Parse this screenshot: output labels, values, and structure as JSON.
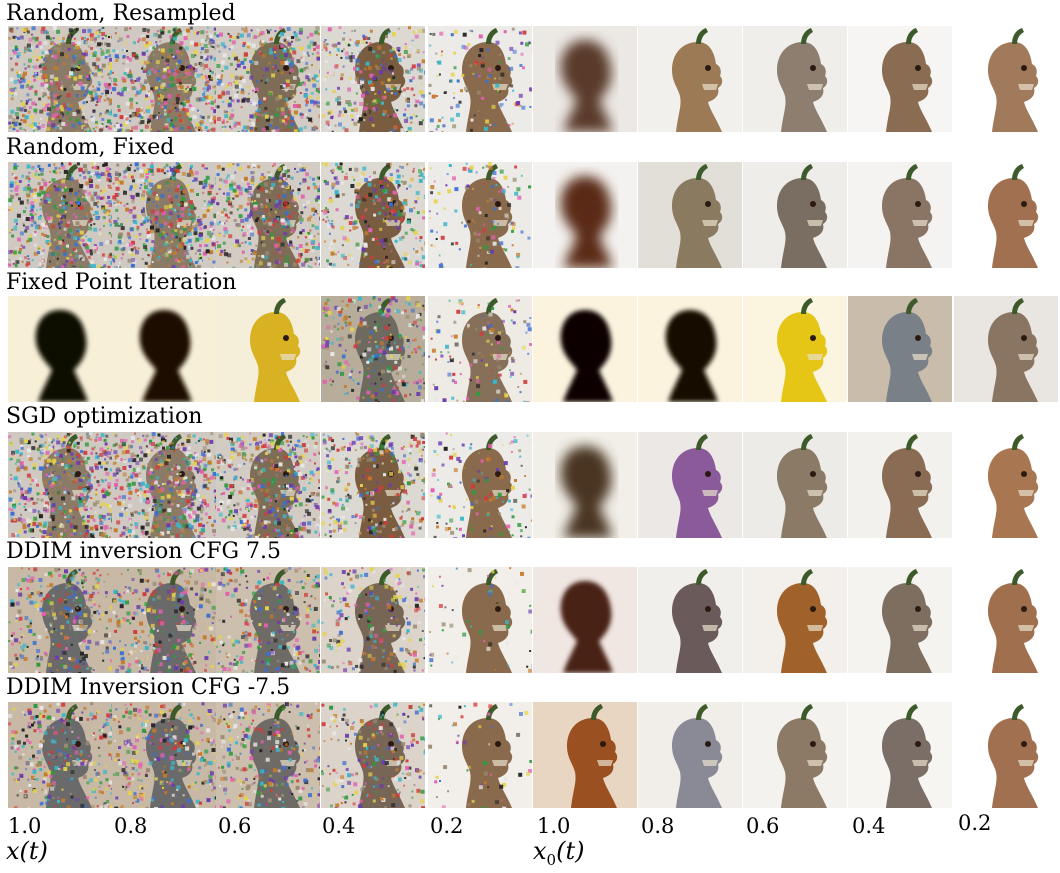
{
  "rows": [
    {
      "title": "Random, Resampled",
      "cells": [
        {
          "kind": "noise",
          "noise": 1.0,
          "bg": "#cfc9c2",
          "head": "#8a7a66"
        },
        {
          "kind": "noise",
          "noise": 0.95,
          "bg": "#cfc9c2",
          "head": "#8a7a66"
        },
        {
          "kind": "noise",
          "noise": 0.8,
          "bg": "#d2ccc4",
          "head": "#7d6c56"
        },
        {
          "kind": "noise",
          "noise": 0.55,
          "bg": "#dcd8d2",
          "head": "#7a5d40"
        },
        {
          "kind": "noise",
          "noise": 0.25,
          "bg": "#ecebe8",
          "head": "#8a6a4c"
        },
        {
          "kind": "blur",
          "noise": 0,
          "bg": "#ece8e4",
          "head": "#5a3a2a"
        },
        {
          "kind": "head",
          "noise": 0,
          "bg": "#f2f0ec",
          "head": "#9b7a55"
        },
        {
          "kind": "head",
          "noise": 0,
          "bg": "#efeeeb",
          "head": "#8d7e70"
        },
        {
          "kind": "head",
          "noise": 0,
          "bg": "#f6f5f3",
          "head": "#8a6c52"
        },
        {
          "kind": "head",
          "noise": 0,
          "bg": "#ffffff",
          "head": "#a07a5a"
        }
      ]
    },
    {
      "title": "Random, Fixed",
      "cells": [
        {
          "kind": "noise",
          "noise": 1.0,
          "bg": "#cfc9c2",
          "head": "#8a7a66"
        },
        {
          "kind": "noise",
          "noise": 0.95,
          "bg": "#cfc9c2",
          "head": "#8a7a66"
        },
        {
          "kind": "noise",
          "noise": 0.8,
          "bg": "#d2ccc4",
          "head": "#7d6c56"
        },
        {
          "kind": "noise",
          "noise": 0.55,
          "bg": "#dcd8d2",
          "head": "#7a5d40"
        },
        {
          "kind": "noise",
          "noise": 0.25,
          "bg": "#ecebe8",
          "head": "#8a6a4c"
        },
        {
          "kind": "blur",
          "noise": 0,
          "bg": "#f4f2f0",
          "head": "#5a2a14"
        },
        {
          "kind": "head",
          "noise": 0,
          "bg": "#e2ded8",
          "head": "#8a7a60"
        },
        {
          "kind": "head",
          "noise": 0,
          "bg": "#eeedea",
          "head": "#7a6e62"
        },
        {
          "kind": "head",
          "noise": 0,
          "bg": "#f4f3f1",
          "head": "#8a7464"
        },
        {
          "kind": "head",
          "noise": 0,
          "bg": "#ffffff",
          "head": "#a07050"
        }
      ]
    },
    {
      "title": "Fixed Point Iteration",
      "cells": [
        {
          "kind": "sil",
          "noise": 0,
          "bg": "#f7efd6",
          "head": "#0c0806"
        },
        {
          "kind": "sil",
          "noise": 0,
          "bg": "#f7efd6",
          "head": "#1a0d06"
        },
        {
          "kind": "head",
          "noise": 0,
          "bg": "#f5eed8",
          "head": "#d8b222"
        },
        {
          "kind": "noise",
          "noise": 0.5,
          "bg": "#b8ad9a",
          "head": "#6d6a60"
        },
        {
          "kind": "noise",
          "noise": 0.25,
          "bg": "#eeeae4",
          "head": "#86705a"
        },
        {
          "kind": "sil",
          "noise": 0,
          "bg": "#fbf3dd",
          "head": "#0a0604"
        },
        {
          "kind": "sil",
          "noise": 0,
          "bg": "#fbf3dd",
          "head": "#120804"
        },
        {
          "kind": "head",
          "noise": 0,
          "bg": "#fbf4df",
          "head": "#e5c515"
        },
        {
          "kind": "head",
          "noise": 0,
          "bg": "#c9bcaa",
          "head": "#7a8088"
        },
        {
          "kind": "head",
          "noise": 0,
          "bg": "#e9e5e0",
          "head": "#8a7462"
        }
      ]
    },
    {
      "title": "SGD optimization",
      "cells": [
        {
          "kind": "noise",
          "noise": 1.0,
          "bg": "#cfc9c2",
          "head": "#8a7a66"
        },
        {
          "kind": "noise",
          "noise": 0.95,
          "bg": "#cfc9c2",
          "head": "#8a7a66"
        },
        {
          "kind": "noise",
          "noise": 0.8,
          "bg": "#d2ccc4",
          "head": "#7d6c56"
        },
        {
          "kind": "noise",
          "noise": 0.55,
          "bg": "#dcd8d2",
          "head": "#7a5d40"
        },
        {
          "kind": "noise",
          "noise": 0.25,
          "bg": "#ecebe8",
          "head": "#8a6a4c"
        },
        {
          "kind": "blur",
          "noise": 0,
          "bg": "#f2efe8",
          "head": "#4a3622"
        },
        {
          "kind": "head",
          "noise": 0,
          "bg": "#ece8e6",
          "head": "#8a5a9a"
        },
        {
          "kind": "head",
          "noise": 0,
          "bg": "#ecebe8",
          "head": "#8a7a66"
        },
        {
          "kind": "head",
          "noise": 0,
          "bg": "#f2f1ee",
          "head": "#8a6c54"
        },
        {
          "kind": "head",
          "noise": 0,
          "bg": "#ffffff",
          "head": "#a87650"
        }
      ]
    },
    {
      "title": "DDIM inversion CFG 7.5",
      "cells": [
        {
          "kind": "noise",
          "noise": 0.55,
          "bg": "#c8b9a6",
          "head": "#6b6a6a"
        },
        {
          "kind": "noise",
          "noise": 0.55,
          "bg": "#c8b9a6",
          "head": "#6b6a6a"
        },
        {
          "kind": "noise",
          "noise": 0.5,
          "bg": "#cdbfae",
          "head": "#6e6a66"
        },
        {
          "kind": "noise",
          "noise": 0.4,
          "bg": "#dcd4ca",
          "head": "#776656"
        },
        {
          "kind": "noise",
          "noise": 0.1,
          "bg": "#f2efea",
          "head": "#8a6a4c"
        },
        {
          "kind": "sil",
          "noise": 0,
          "bg": "#f0e6e2",
          "head": "#4a2012"
        },
        {
          "kind": "head",
          "noise": 0,
          "bg": "#f1efec",
          "head": "#6a5a5a"
        },
        {
          "kind": "head",
          "noise": 0,
          "bg": "#f3efea",
          "head": "#a0622a"
        },
        {
          "kind": "head",
          "noise": 0,
          "bg": "#f4f3f0",
          "head": "#7d6e60"
        },
        {
          "kind": "head",
          "noise": 0,
          "bg": "#ffffff",
          "head": "#a0704e"
        }
      ]
    },
    {
      "title": "DDIM Inversion CFG  -7.5",
      "cells": [
        {
          "kind": "noise",
          "noise": 0.55,
          "bg": "#c8b9a6",
          "head": "#6b6a6a"
        },
        {
          "kind": "noise",
          "noise": 0.55,
          "bg": "#c8b9a6",
          "head": "#6b6a6a"
        },
        {
          "kind": "noise",
          "noise": 0.5,
          "bg": "#cdbfae",
          "head": "#6e6a66"
        },
        {
          "kind": "noise",
          "noise": 0.4,
          "bg": "#dcd4ca",
          "head": "#776656"
        },
        {
          "kind": "noise",
          "noise": 0.1,
          "bg": "#f2efea",
          "head": "#8a6a4c"
        },
        {
          "kind": "head",
          "noise": 0,
          "bg": "#e9d6c2",
          "head": "#9a5020"
        },
        {
          "kind": "head",
          "noise": 0,
          "bg": "#f1ede8",
          "head": "#8a8a96"
        },
        {
          "kind": "head",
          "noise": 0,
          "bg": "#f4f2ee",
          "head": "#8d7a66"
        },
        {
          "kind": "head",
          "noise": 0,
          "bg": "#f6f5f2",
          "head": "#7a6e66"
        },
        {
          "kind": "head",
          "noise": 0,
          "bg": "#ffffff",
          "head": "#a07050"
        }
      ]
    }
  ],
  "ticks": [
    "1.0",
    "0.8",
    "0.6",
    "0.4",
    "0.2",
    "1.0",
    "0.8",
    "0.6",
    "0.4",
    "0.2"
  ],
  "axis_left": "x(t)",
  "axis_right_base": "x",
  "axis_right_sub": "0",
  "axis_right_tail": "(t)"
}
